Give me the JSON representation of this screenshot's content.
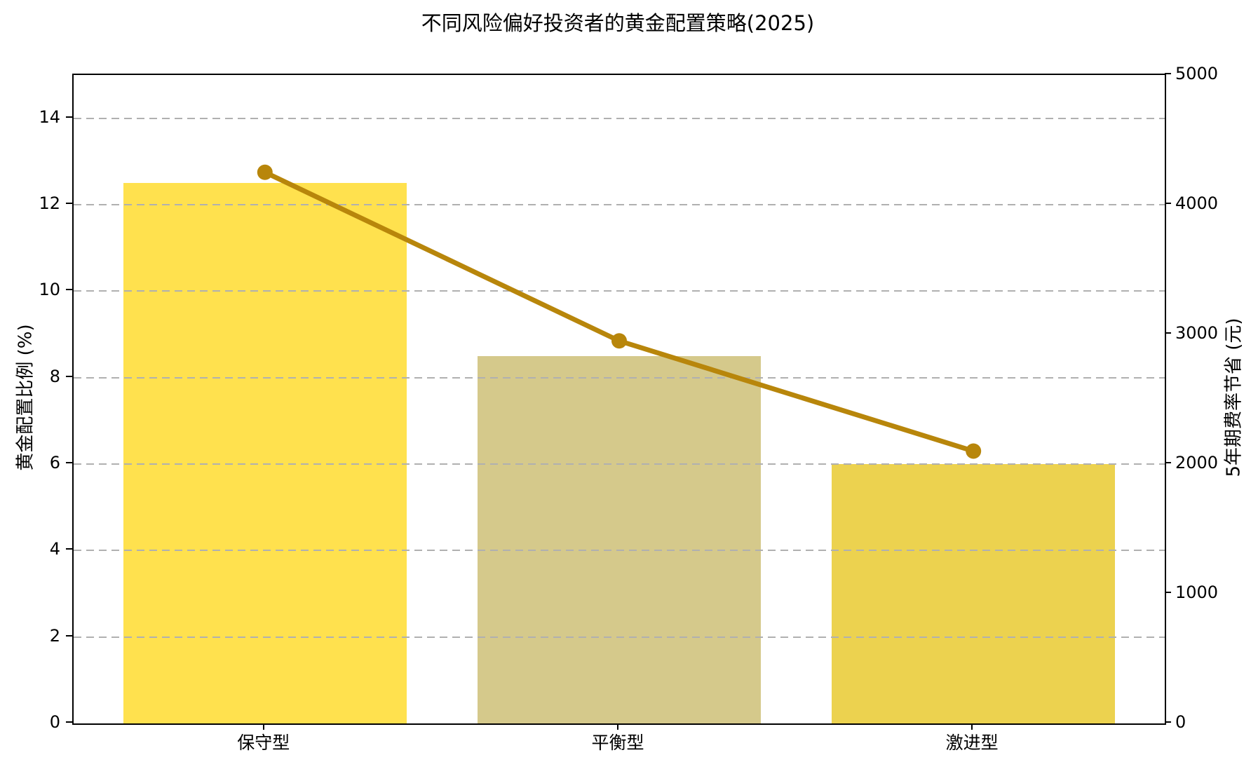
{
  "chart_data": {
    "type": "bar",
    "title": "不同风险偏好投资者的黄金配置策略(2025)",
    "categories": [
      "保守型",
      "平衡型",
      "激进型"
    ],
    "series": [
      {
        "name": "黄金配置比例 (%)",
        "type": "bar",
        "axis": "left",
        "values": [
          12.5,
          8.5,
          6.0
        ],
        "bar_colors": [
          "#FFE14E",
          "#D5C98B",
          "#ECD24F"
        ]
      },
      {
        "name": "5年期费率节省 (元)",
        "type": "line",
        "axis": "right",
        "values": [
          4250,
          2950,
          2100
        ],
        "color": "#B8860B",
        "marker": "circle"
      }
    ],
    "xlabel": "",
    "ylabel_left": "黄金配置比例 (%)",
    "ylabel_right": "5年期费率节省 (元)",
    "yaxis_left": {
      "min": 0,
      "max": 15,
      "ticks": [
        0,
        2,
        4,
        6,
        8,
        10,
        12,
        14
      ]
    },
    "yaxis_right": {
      "min": 0,
      "max": 5000,
      "ticks": [
        0,
        1000,
        2000,
        3000,
        4000,
        5000
      ]
    },
    "grid": {
      "on": true,
      "style": "dashed",
      "color": "#b0b0b0",
      "axis": "y",
      "above_bars": true
    },
    "legend": {
      "visible": false
    },
    "bar_width_fraction": 0.8
  }
}
